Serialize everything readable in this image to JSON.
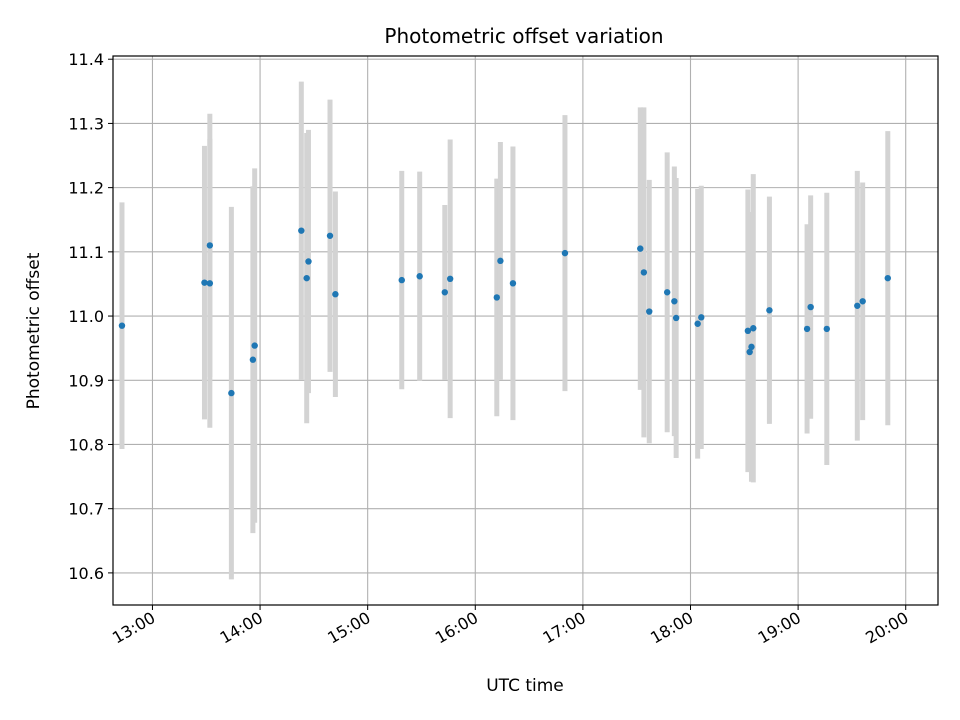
{
  "chart_data": {
    "type": "scatter",
    "title": "Photometric offset variation",
    "xlabel": "UTC time",
    "ylabel": "Photometric offset",
    "xlim": [
      "12:38",
      "20:18"
    ],
    "ylim": [
      10.55,
      11.405
    ],
    "grid": true,
    "point_color": "#1f77b4",
    "errorbar_color": "#d3d3d3",
    "xticks": [
      "13:00",
      "14:00",
      "15:00",
      "16:00",
      "17:00",
      "18:00",
      "19:00",
      "20:00"
    ],
    "yticks": [
      "10.6",
      "10.7",
      "10.8",
      "10.9",
      "11.0",
      "11.1",
      "11.2",
      "11.3",
      "11.4"
    ],
    "points": [
      {
        "x": "12:43",
        "y": 10.985,
        "err": 0.192
      },
      {
        "x": "13:29",
        "y": 11.052,
        "err": 0.213
      },
      {
        "x": "13:32",
        "y": 11.11,
        "err": 0.205
      },
      {
        "x": "13:32",
        "y": 11.051,
        "err": 0.225
      },
      {
        "x": "13:44",
        "y": 10.88,
        "err": 0.29
      },
      {
        "x": "13:56",
        "y": 10.932,
        "err": 0.27
      },
      {
        "x": "13:57",
        "y": 10.954,
        "err": 0.276
      },
      {
        "x": "14:23",
        "y": 11.133,
        "err": 0.232
      },
      {
        "x": "14:26",
        "y": 11.059,
        "err": 0.226
      },
      {
        "x": "14:27",
        "y": 11.085,
        "err": 0.205
      },
      {
        "x": "14:39",
        "y": 11.125,
        "err": 0.212
      },
      {
        "x": "14:42",
        "y": 11.034,
        "err": 0.16
      },
      {
        "x": "15:19",
        "y": 11.056,
        "err": 0.17
      },
      {
        "x": "15:29",
        "y": 11.062,
        "err": 0.163
      },
      {
        "x": "15:43",
        "y": 11.037,
        "err": 0.136
      },
      {
        "x": "15:46",
        "y": 11.058,
        "err": 0.217
      },
      {
        "x": "16:12",
        "y": 11.029,
        "err": 0.185
      },
      {
        "x": "16:14",
        "y": 11.086,
        "err": 0.185
      },
      {
        "x": "16:21",
        "y": 11.051,
        "err": 0.213
      },
      {
        "x": "16:50",
        "y": 11.098,
        "err": 0.215
      },
      {
        "x": "17:32",
        "y": 11.105,
        "err": 0.22
      },
      {
        "x": "17:34",
        "y": 11.068,
        "err": 0.257
      },
      {
        "x": "17:37",
        "y": 11.007,
        "err": 0.205
      },
      {
        "x": "17:47",
        "y": 11.037,
        "err": 0.218
      },
      {
        "x": "17:51",
        "y": 11.023,
        "err": 0.21
      },
      {
        "x": "17:52",
        "y": 10.997,
        "err": 0.218
      },
      {
        "x": "18:04",
        "y": 10.988,
        "err": 0.21
      },
      {
        "x": "18:06",
        "y": 10.998,
        "err": 0.205
      },
      {
        "x": "18:32",
        "y": 10.977,
        "err": 0.22
      },
      {
        "x": "18:33",
        "y": 10.944,
        "err": 0.182
      },
      {
        "x": "18:34",
        "y": 10.952,
        "err": 0.21
      },
      {
        "x": "18:35",
        "y": 10.981,
        "err": 0.24
      },
      {
        "x": "18:44",
        "y": 11.009,
        "err": 0.177
      },
      {
        "x": "19:05",
        "y": 10.98,
        "err": 0.163
      },
      {
        "x": "19:07",
        "y": 11.014,
        "err": 0.174
      },
      {
        "x": "19:16",
        "y": 10.98,
        "err": 0.212
      },
      {
        "x": "19:33",
        "y": 11.016,
        "err": 0.21
      },
      {
        "x": "19:36",
        "y": 11.023,
        "err": 0.185
      },
      {
        "x": "19:50",
        "y": 11.059,
        "err": 0.229
      }
    ]
  }
}
